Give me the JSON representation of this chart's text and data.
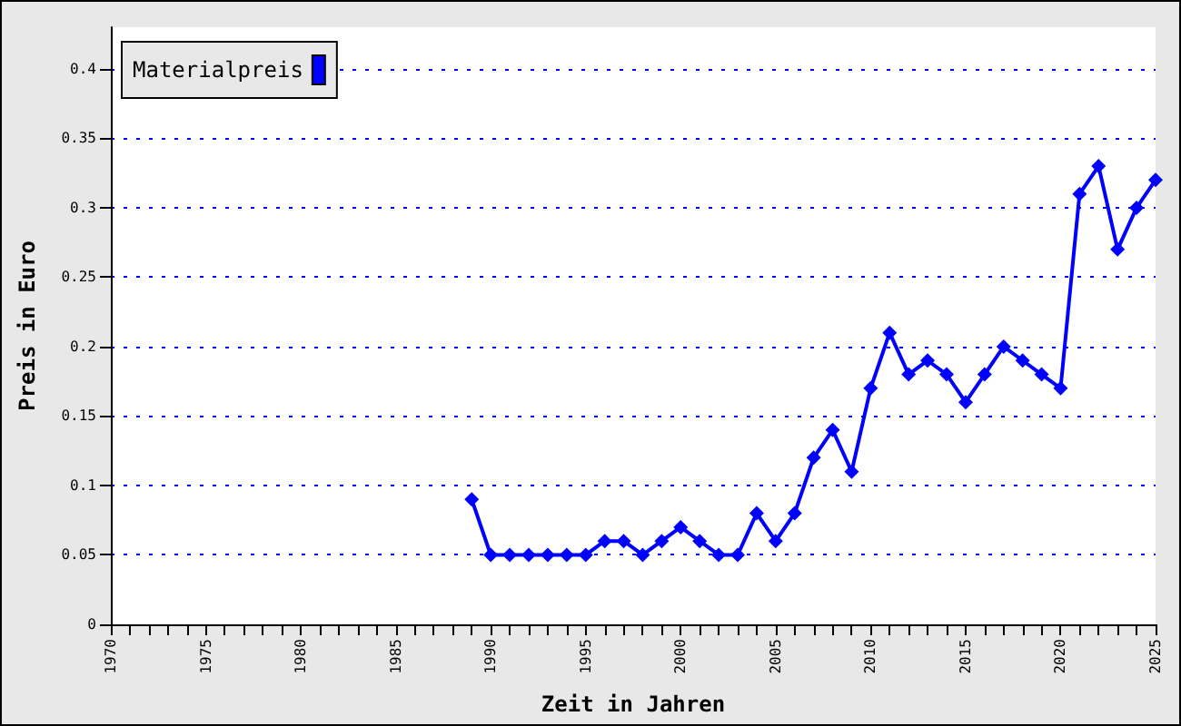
{
  "chart_data": {
    "type": "line",
    "xlabel": "Zeit in Jahren",
    "ylabel": "Preis in Euro",
    "x": [
      1989,
      1990,
      1991,
      1992,
      1993,
      1994,
      1995,
      1996,
      1997,
      1998,
      1999,
      2000,
      2001,
      2002,
      2003,
      2004,
      2005,
      2006,
      2007,
      2008,
      2009,
      2010,
      2011,
      2012,
      2013,
      2014,
      2015,
      2016,
      2017,
      2018,
      2019,
      2020,
      2021,
      2022,
      2023,
      2024,
      2025
    ],
    "series": [
      {
        "name": "Materialpreis",
        "color": "#0000ff",
        "values": [
          0.09,
          0.05,
          0.05,
          0.05,
          0.05,
          0.05,
          0.05,
          0.06,
          0.06,
          0.05,
          0.06,
          0.07,
          0.06,
          0.05,
          0.05,
          0.08,
          0.06,
          0.08,
          0.12,
          0.14,
          0.11,
          0.17,
          0.21,
          0.18,
          0.19,
          0.18,
          0.16,
          0.18,
          0.2,
          0.19,
          0.18,
          0.17,
          0.31,
          0.33,
          0.27,
          0.3,
          0.32
        ]
      }
    ],
    "xlim": [
      1970,
      2025
    ],
    "xticks": [
      1970,
      {
        "value": 1971,
        "label": null
      },
      {
        "value": 1972,
        "label": null
      },
      {
        "value": 1973,
        "label": null
      },
      {
        "value": 1974,
        "label": null
      },
      1975,
      {
        "value": 1976,
        "label": null
      },
      {
        "value": 1977,
        "label": null
      },
      {
        "value": 1978,
        "label": null
      },
      {
        "value": 1979,
        "label": null
      },
      1980,
      {
        "value": 1981,
        "label": null
      },
      {
        "value": 1982,
        "label": null
      },
      {
        "value": 1983,
        "label": null
      },
      {
        "value": 1984,
        "label": null
      },
      1985,
      {
        "value": 1986,
        "label": null
      },
      {
        "value": 1987,
        "label": null
      },
      {
        "value": 1988,
        "label": null
      },
      {
        "value": 1989,
        "label": null
      },
      1990,
      {
        "value": 1991,
        "label": null
      },
      {
        "value": 1992,
        "label": null
      },
      {
        "value": 1993,
        "label": null
      },
      {
        "value": 1994,
        "label": null
      },
      1995,
      {
        "value": 1996,
        "label": null
      },
      {
        "value": 1997,
        "label": null
      },
      {
        "value": 1998,
        "label": null
      },
      {
        "value": 1999,
        "label": null
      },
      2000,
      {
        "value": 2001,
        "label": null
      },
      {
        "value": 2002,
        "label": null
      },
      {
        "value": 2003,
        "label": null
      },
      {
        "value": 2004,
        "label": null
      },
      2005,
      {
        "value": 2006,
        "label": null
      },
      {
        "value": 2007,
        "label": null
      },
      {
        "value": 2008,
        "label": null
      },
      {
        "value": 2009,
        "label": null
      },
      2010,
      {
        "value": 2011,
        "label": null
      },
      {
        "value": 2012,
        "label": null
      },
      {
        "value": 2013,
        "label": null
      },
      {
        "value": 2014,
        "label": null
      },
      2015,
      {
        "value": 2016,
        "label": null
      },
      {
        "value": 2017,
        "label": null
      },
      {
        "value": 2018,
        "label": null
      },
      {
        "value": 2019,
        "label": null
      },
      2020,
      {
        "value": 2021,
        "label": null
      },
      {
        "value": 2022,
        "label": null
      },
      {
        "value": 2023,
        "label": null
      },
      {
        "value": 2024,
        "label": null
      },
      2025
    ],
    "ylim": [
      0,
      0.43
    ],
    "yticks": [
      0,
      0.05,
      0.1,
      0.15,
      0.2,
      0.25,
      0.3,
      0.35,
      0.4
    ],
    "grid": "y",
    "legend": "top left",
    "marker": "diamond",
    "line_style": "solid"
  }
}
